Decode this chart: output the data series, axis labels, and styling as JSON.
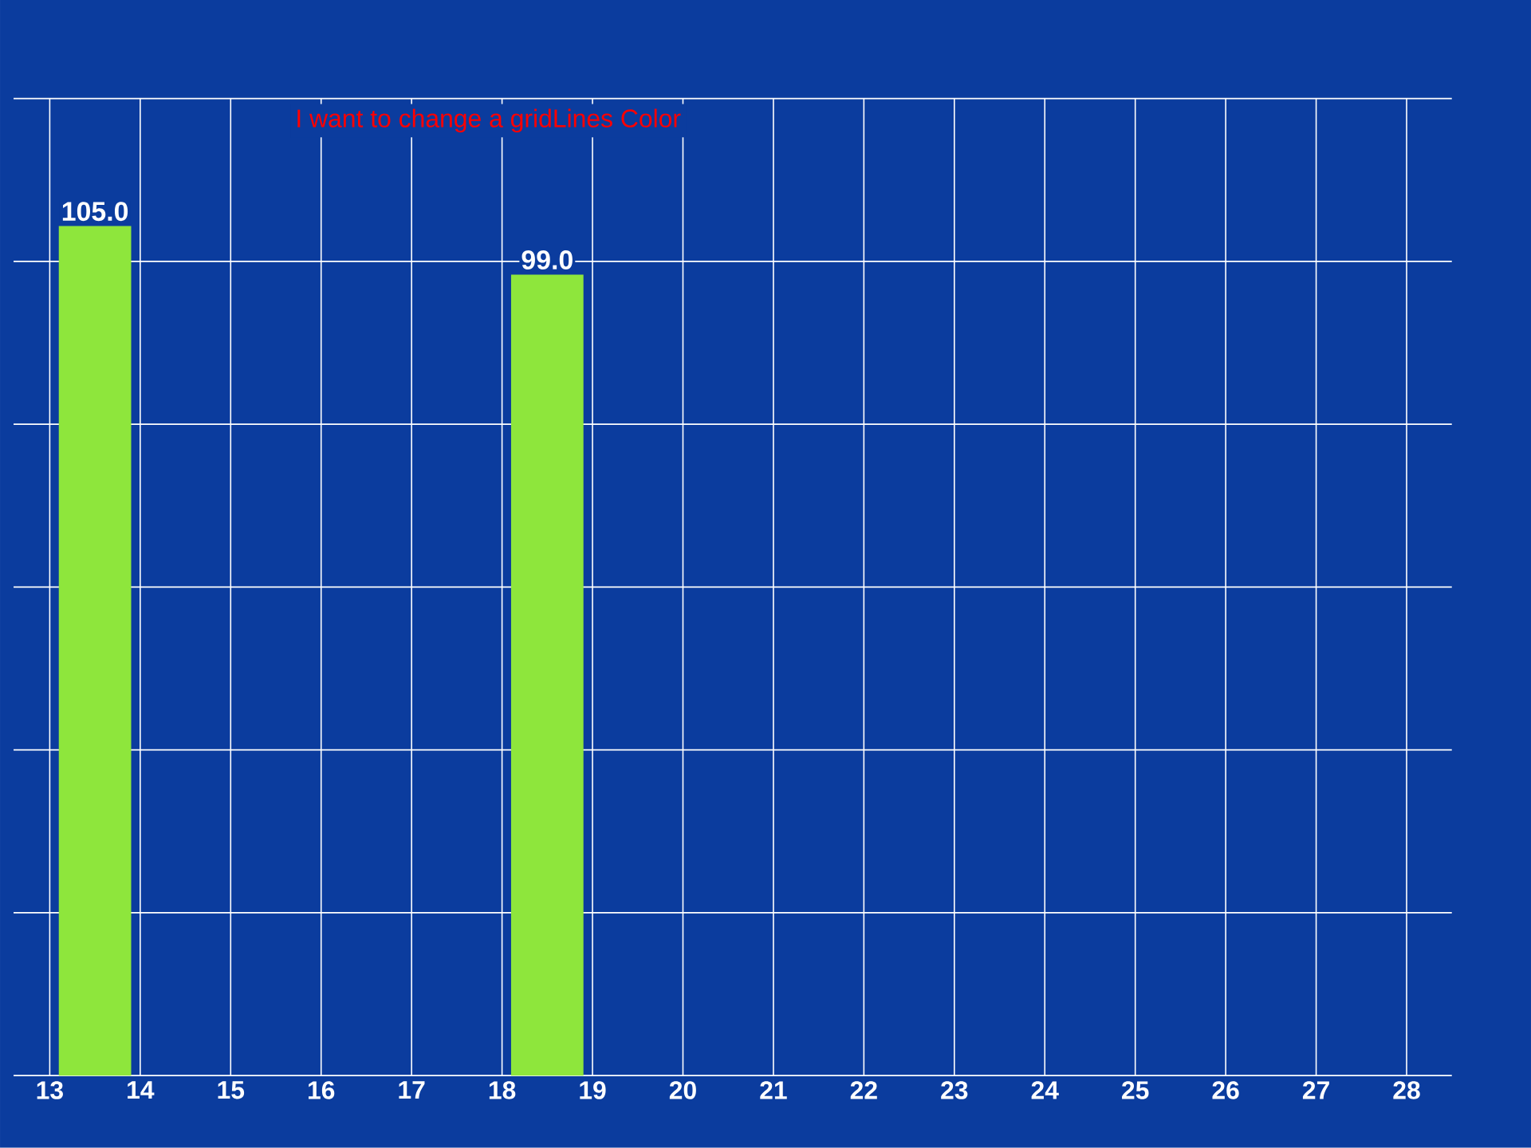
{
  "chart_data": {
    "type": "bar",
    "title": "I want to change a gridLines Color",
    "x": [
      13.5,
      18.5
    ],
    "series": [
      {
        "color": "#8ee63c",
        "values": [
          105.0,
          99.0
        ],
        "value_labels": [
          "105.0",
          "99.0"
        ]
      }
    ],
    "xlim": [
      12.6,
      28.5
    ],
    "xticks": [
      13,
      14,
      15,
      16,
      17,
      18,
      19,
      20,
      21,
      22,
      23,
      24,
      25,
      26,
      27,
      28
    ],
    "grid": true
  }
}
